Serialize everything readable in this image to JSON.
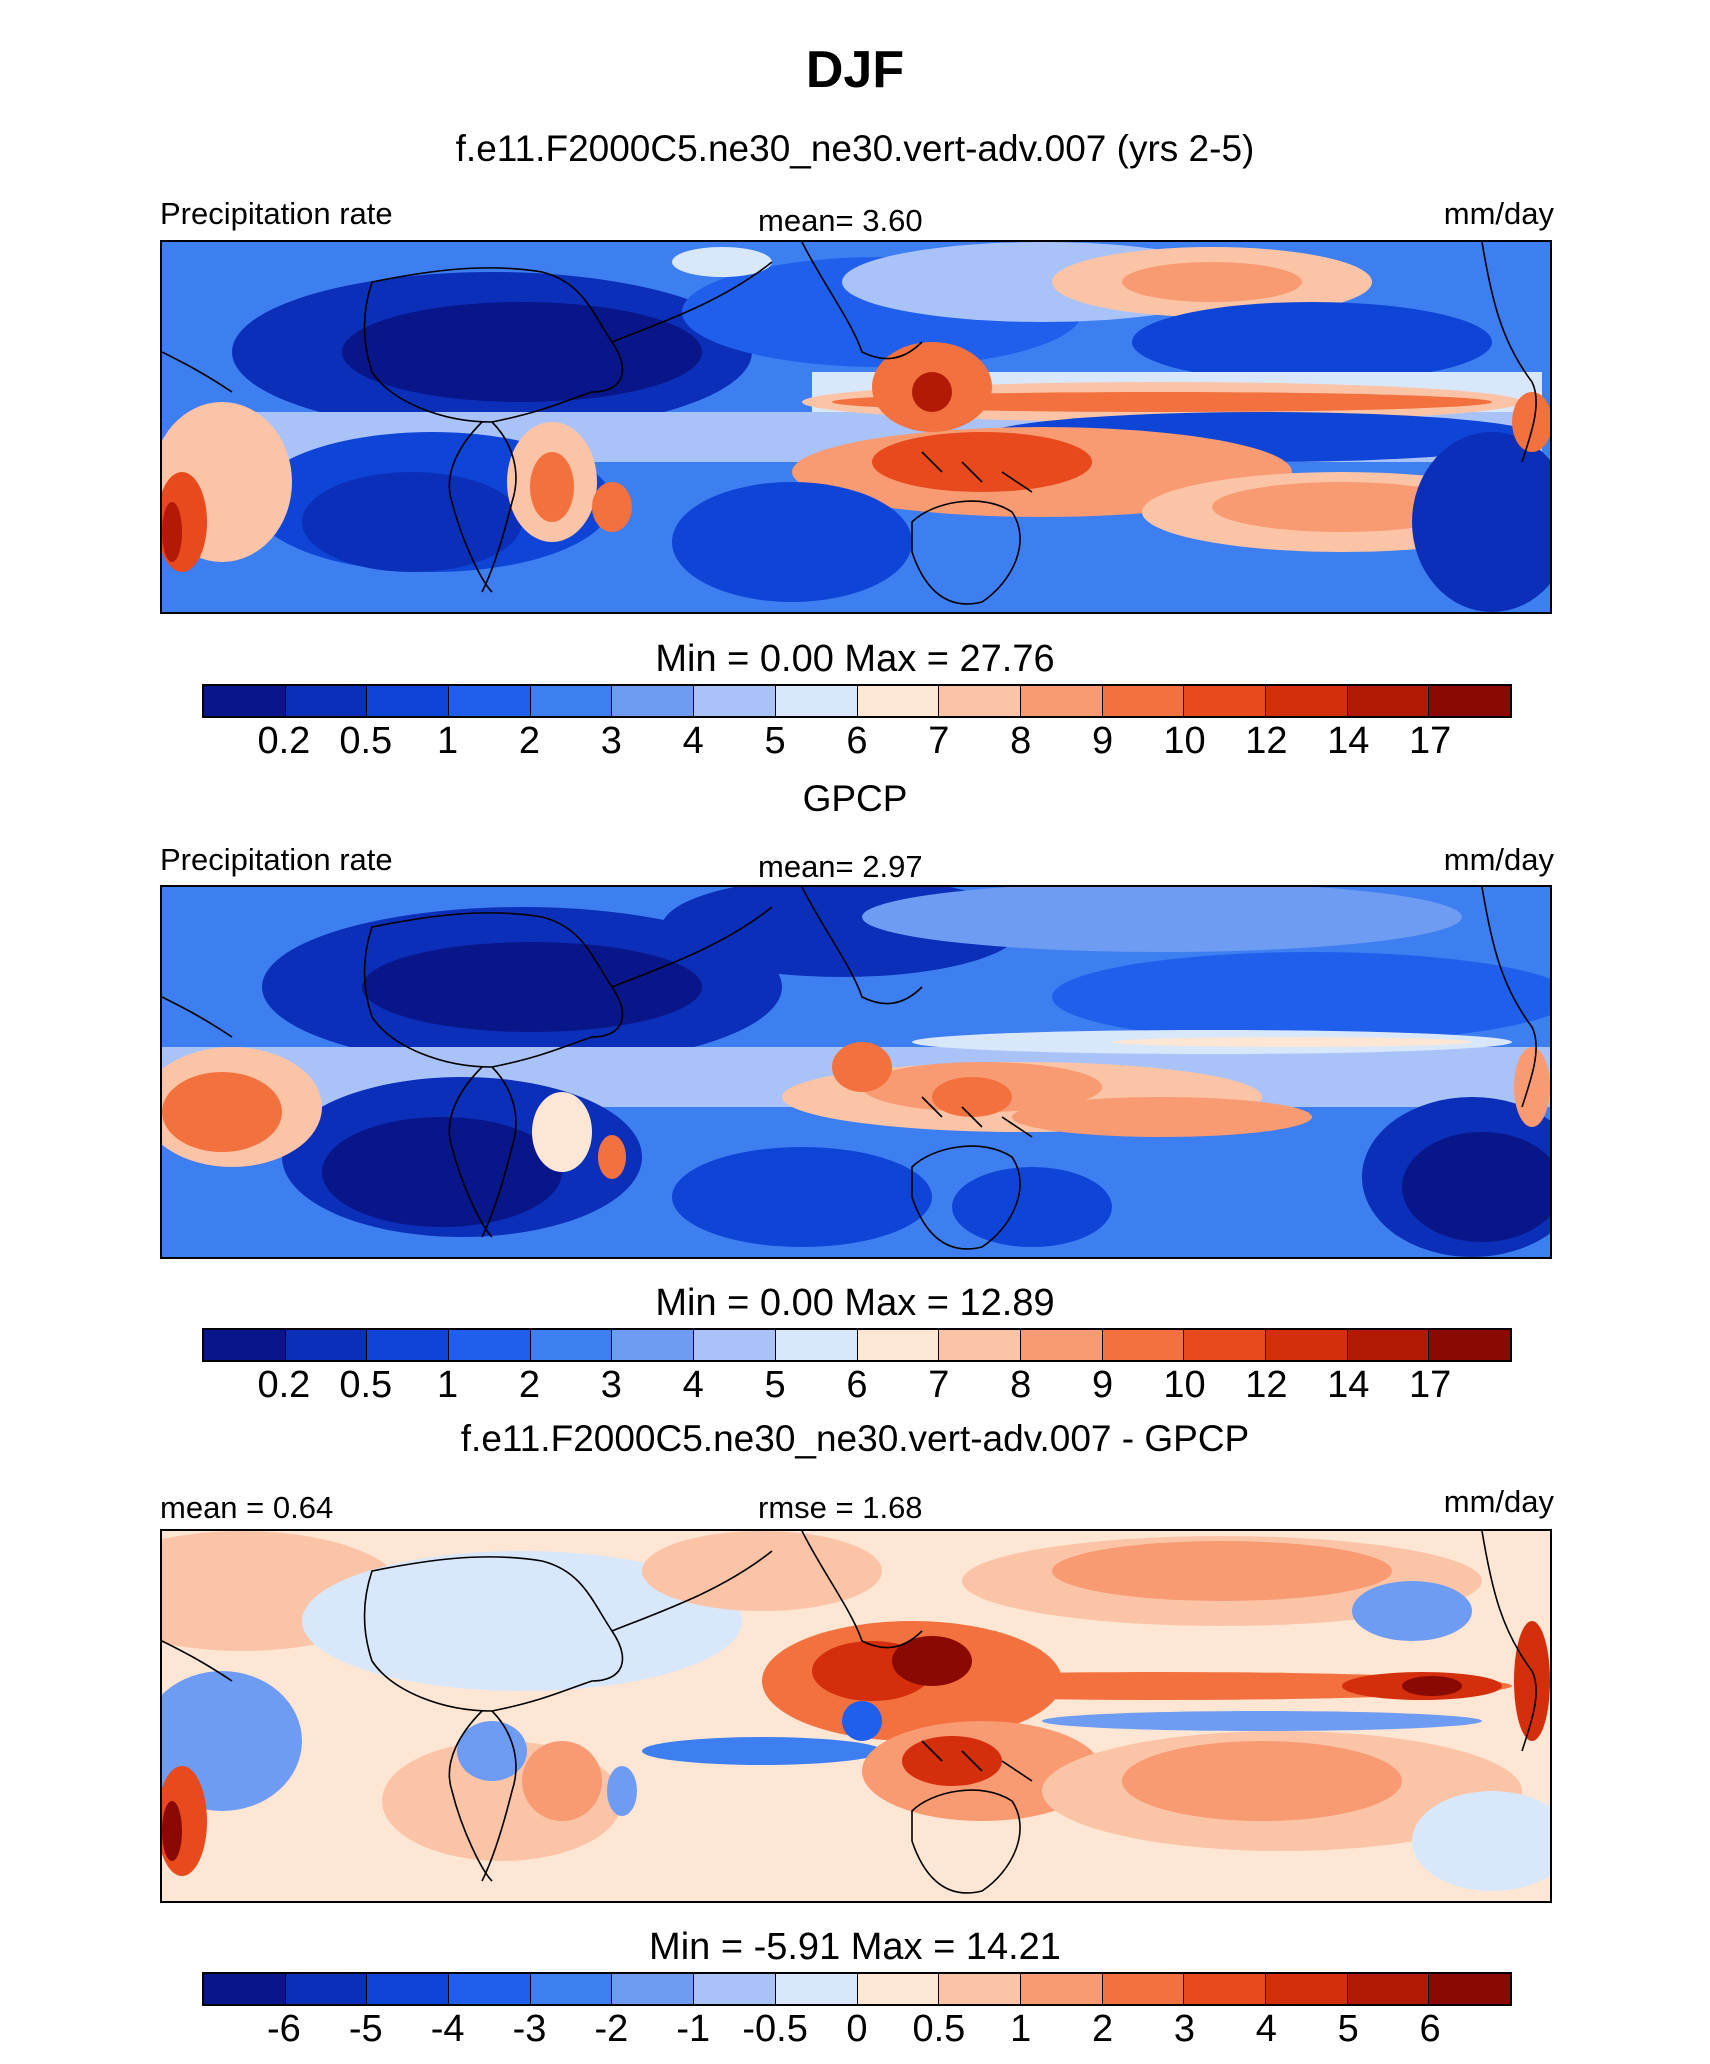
{
  "title": "DJF",
  "panels": [
    {
      "title": "f.e11.F2000C5.ne30_ne30.vert-adv.007 (yrs 2-5)",
      "left_label": "Precipitation rate",
      "center_label": "mean=   3.60",
      "right_label": "mm/day",
      "minmax": "Min =    0.00 Max =  27.76",
      "colorbar_ticks": [
        "0.2",
        "0.5",
        "1",
        "2",
        "3",
        "4",
        "5",
        "6",
        "7",
        "8",
        "9",
        "10",
        "12",
        "14",
        "17"
      ]
    },
    {
      "title": "GPCP",
      "left_label": "Precipitation rate",
      "center_label": "mean=   2.97",
      "right_label": "mm/day",
      "minmax": "Min =    0.00 Max =  12.89",
      "colorbar_ticks": [
        "0.2",
        "0.5",
        "1",
        "2",
        "3",
        "4",
        "5",
        "6",
        "7",
        "8",
        "9",
        "10",
        "12",
        "14",
        "17"
      ]
    },
    {
      "title": "f.e11.F2000C5.ne30_ne30.vert-adv.007 - GPCP",
      "left_label": "mean =   0.64",
      "center_label": "rmse =   1.68",
      "right_label": "mm/day",
      "minmax": "Min =  -5.91 Max =  14.21",
      "colorbar_ticks": [
        "-6",
        "-5",
        "-4",
        "-3",
        "-2",
        "-1",
        "-0.5",
        "0",
        "0.5",
        "1",
        "2",
        "3",
        "4",
        "5",
        "6"
      ]
    }
  ],
  "colorbar_colors": [
    "#08168a",
    "#0b2fb8",
    "#0f45d6",
    "#1f5fec",
    "#3d7ef0",
    "#6f9cf3",
    "#a9c3f8",
    "#d9e7fb",
    "#fde6d4",
    "#fbc4a6",
    "#f89a72",
    "#f3703f",
    "#e84a1d",
    "#d42e0c",
    "#b21a06",
    "#8a0a03"
  ]
}
